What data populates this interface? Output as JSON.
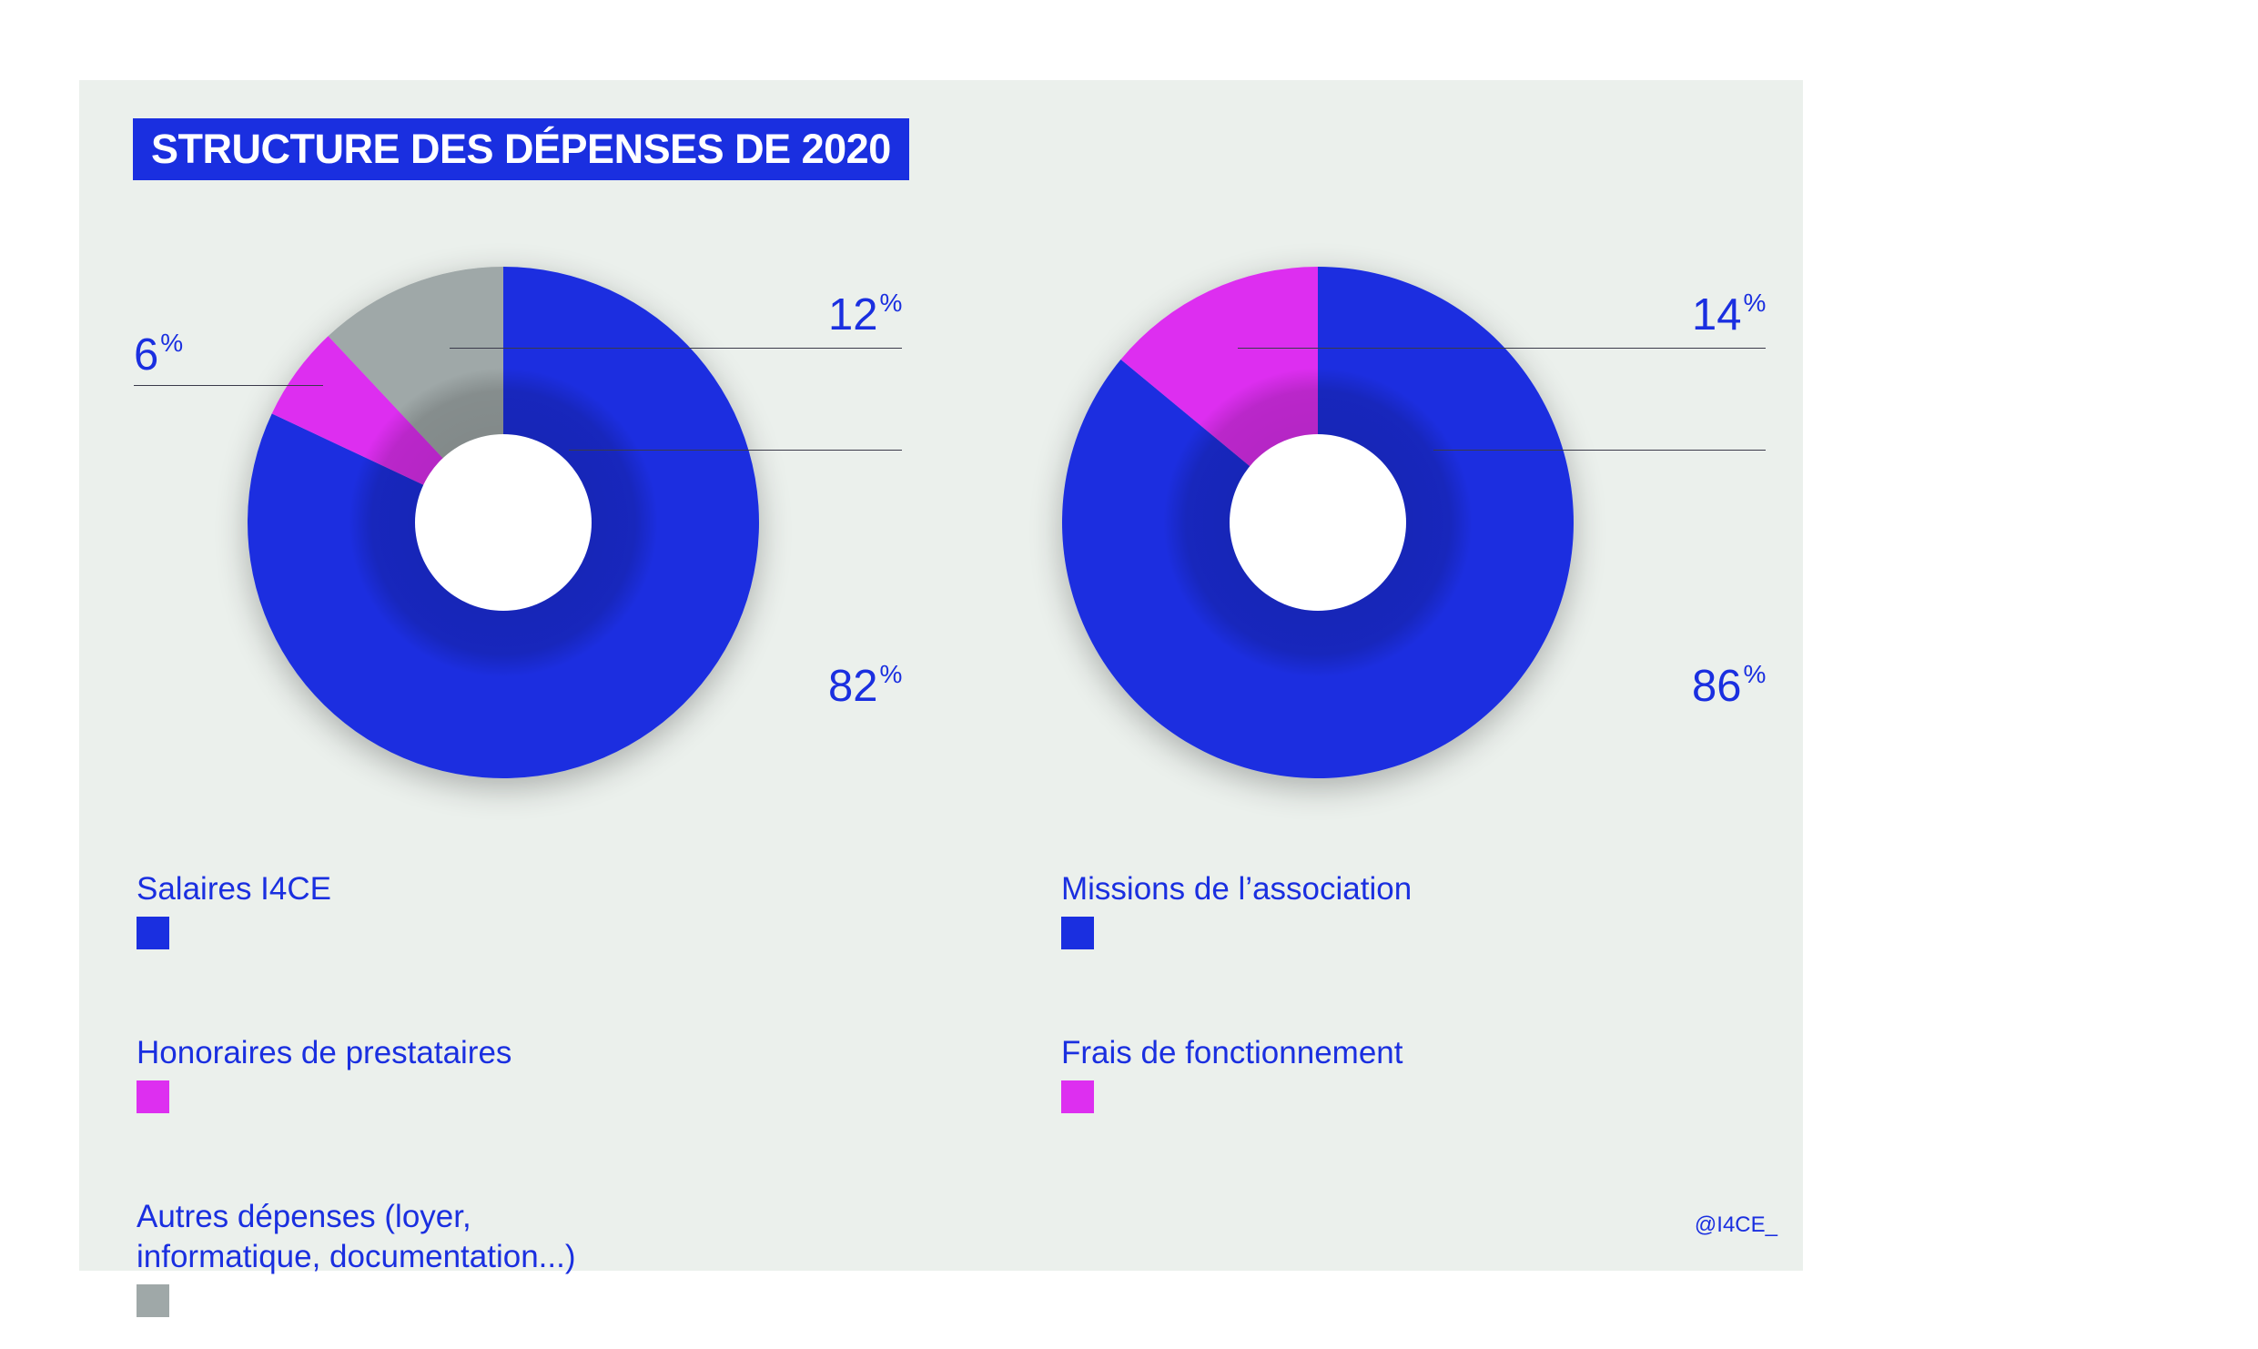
{
  "title": "STRUCTURE DES DÉPENSES DE 2020",
  "credit": "@I4CE_",
  "percent_symbol": "%",
  "colors": {
    "blue": "#1a2fe0",
    "pink": "#dd2ff0",
    "grey": "#9fa8a8",
    "panel": "#ebf0ec"
  },
  "chart_data": [
    {
      "type": "pie",
      "title": "",
      "slices": [
        {
          "label": "Salaires I4CE",
          "value": 82,
          "value_text": "82",
          "color": "#1a2fe0"
        },
        {
          "label": "Honoraires de prestataires",
          "value": 6,
          "value_text": "6",
          "color": "#dd2ff0"
        },
        {
          "label": "Autres dépenses (loyer, informatique, documentation...)",
          "value": 12,
          "value_text": "12",
          "color": "#9fa8a8"
        }
      ],
      "legend": [
        {
          "label_lines": [
            "Salaires I4CE"
          ],
          "color": "#1a2fe0"
        },
        {
          "label_lines": [
            "Honoraires de prestataires"
          ],
          "color": "#dd2ff0"
        },
        {
          "label_lines": [
            "Autres dépenses (loyer,",
            "informatique, documentation...)"
          ],
          "color": "#9fa8a8"
        }
      ]
    },
    {
      "type": "pie",
      "title": "",
      "slices": [
        {
          "label": "Missions de l’association",
          "value": 86,
          "value_text": "86",
          "color": "#1a2fe0"
        },
        {
          "label": "Frais de fonctionnement",
          "value": 14,
          "value_text": "14",
          "color": "#dd2ff0"
        }
      ],
      "legend": [
        {
          "label_lines": [
            "Missions de l’association"
          ],
          "color": "#1a2fe0"
        },
        {
          "label_lines": [
            "Frais de fonctionnement"
          ],
          "color": "#dd2ff0"
        }
      ]
    }
  ]
}
